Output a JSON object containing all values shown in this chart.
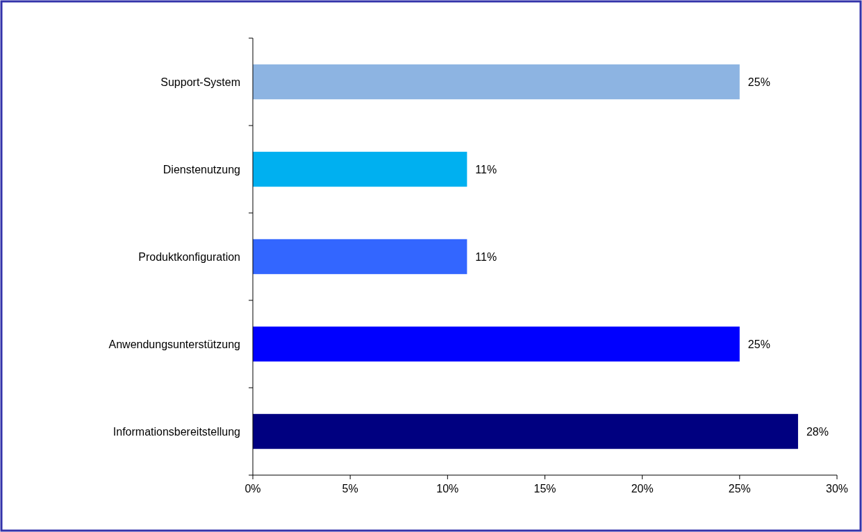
{
  "chart_data": {
    "type": "bar",
    "orientation": "horizontal",
    "categories": [
      "Support-System",
      "Dienstenutzung",
      "Produktkonfiguration",
      "Anwendungsunterstützung",
      "Informationsbereitstellung"
    ],
    "values": [
      25,
      11,
      11,
      25,
      28
    ],
    "colors": [
      "#8db4e2",
      "#00b0f0",
      "#3366ff",
      "#0000ff",
      "#000080"
    ],
    "value_labels": [
      "25%",
      "11%",
      "11%",
      "25%",
      "28%"
    ],
    "xlim": [
      0,
      30
    ],
    "xticks": [
      {
        "value": 0,
        "label": "0%"
      },
      {
        "value": 5,
        "label": "5%"
      },
      {
        "value": 10,
        "label": "10%"
      },
      {
        "value": 15,
        "label": "15%"
      },
      {
        "value": 20,
        "label": "20%"
      },
      {
        "value": 25,
        "label": "25%"
      },
      {
        "value": 30,
        "label": "30%"
      }
    ],
    "grid": false
  }
}
